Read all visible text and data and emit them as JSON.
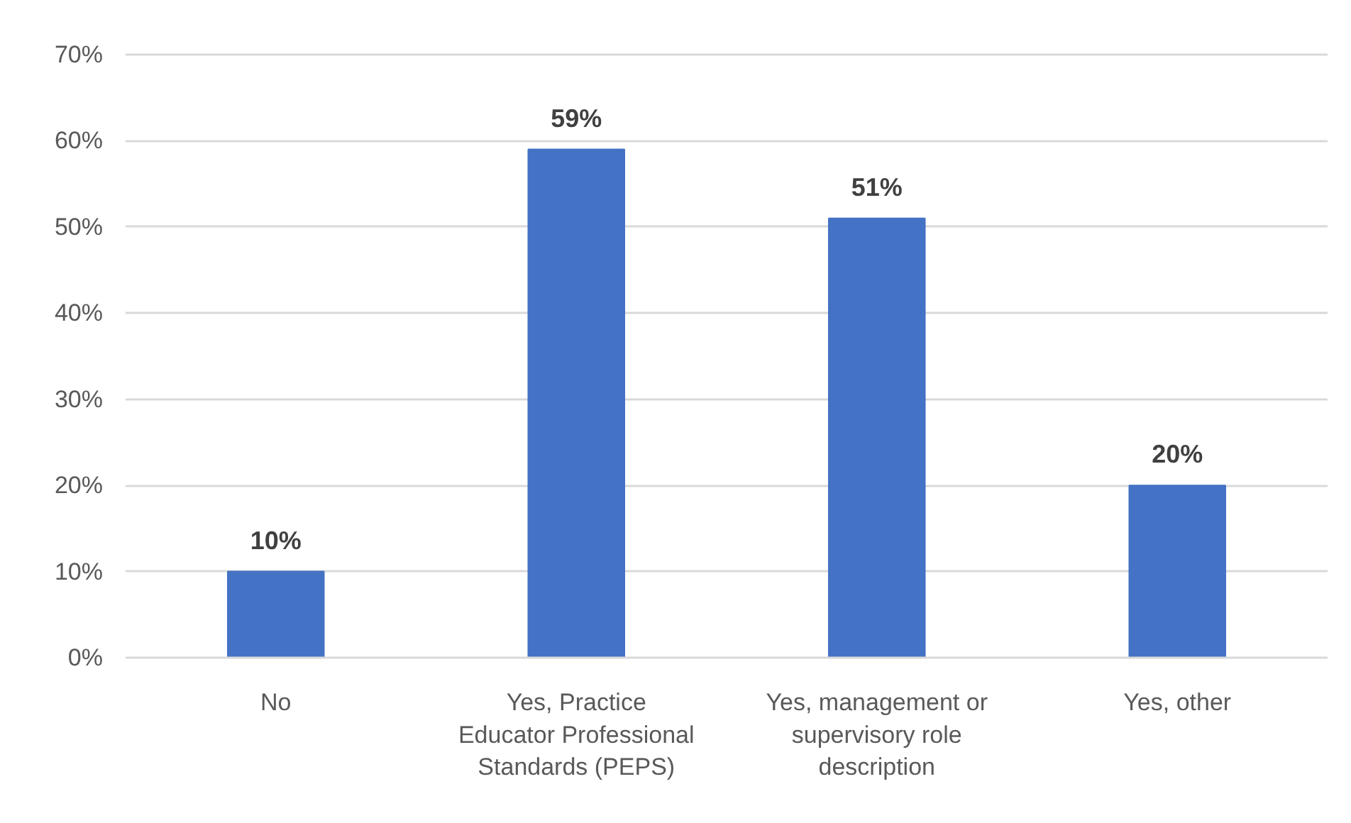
{
  "chart_data": {
    "type": "bar",
    "categories": [
      "No",
      "Yes, Practice Educator Professional Standards (PEPS)",
      "Yes, management or supervisory role description",
      "Yes, other"
    ],
    "values": [
      10,
      59,
      51,
      20
    ],
    "value_labels": [
      "10%",
      "59%",
      "51%",
      "20%"
    ],
    "color": "#4472c4",
    "ylim": [
      0,
      70
    ],
    "yticks": [
      {
        "value": 0,
        "label": "0%"
      },
      {
        "value": 10,
        "label": "10%"
      },
      {
        "value": 20,
        "label": "20%"
      },
      {
        "value": 30,
        "label": "30%"
      },
      {
        "value": 40,
        "label": "40%"
      },
      {
        "value": 50,
        "label": "50%"
      },
      {
        "value": 60,
        "label": "60%"
      },
      {
        "value": 70,
        "label": "70%"
      }
    ],
    "grid": "y"
  }
}
